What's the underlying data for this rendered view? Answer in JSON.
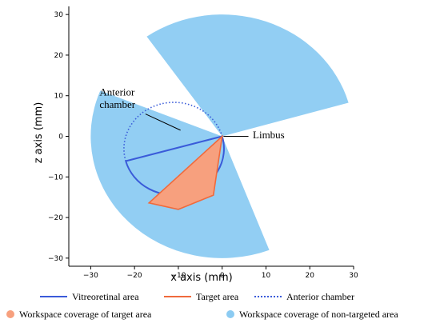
{
  "chart_data": {
    "type": "area",
    "title": "",
    "xlabel": "x axis (mm)",
    "ylabel": "z axis (mm)",
    "xlim": [
      -35,
      30
    ],
    "ylim": [
      -32,
      32
    ],
    "x_ticks": [
      -30,
      -20,
      -10,
      0,
      10,
      20,
      30
    ],
    "y_ticks": [
      -30,
      -20,
      -10,
      0,
      10,
      20,
      30
    ],
    "grid": false,
    "legend_placement": "bottom",
    "eye": {
      "center": [
        -11,
        -7
      ],
      "radius": 11,
      "limbus_point": [
        0,
        0
      ]
    },
    "target_area_polygon": [
      [
        0,
        0
      ],
      [
        -16.7,
        -16.4
      ],
      [
        -10,
        -18
      ],
      [
        -2,
        -14.5
      ]
    ],
    "coverage_wedges": [
      {
        "name": "Workspace coverage of non-targeted area",
        "apex": [
          0,
          0
        ],
        "radius": 30,
        "angle_start_deg": 16,
        "angle_end_deg": 125
      },
      {
        "name": "Workspace coverage of non-targeted area",
        "apex": [
          0,
          0
        ],
        "radius": 30,
        "angle_start_deg": 158,
        "angle_end_deg": 291
      }
    ],
    "annotations": [
      {
        "text": "Anterior",
        "x": -28,
        "y": 10
      },
      {
        "text": "chamber",
        "x": -28,
        "y": 7
      },
      {
        "text": "Limbus",
        "x": 7,
        "y": -0.5
      }
    ],
    "legend": [
      {
        "label": "Vitreoretinal area",
        "style": "solid-line",
        "color": "#3a5bd9"
      },
      {
        "label": "Target area",
        "style": "solid-line",
        "color": "#f06a3c"
      },
      {
        "label": "Anterior chamber",
        "style": "dotted-line",
        "color": "#3a5bd9"
      },
      {
        "label": "Workspace coverage of target area",
        "style": "dot",
        "color": "#f7a07e"
      },
      {
        "label": "Workspace coverage of non-targeted area",
        "style": "dot",
        "color": "#8ccbf2"
      }
    ],
    "colors": {
      "coverage_non_target": "#8ccbf2",
      "coverage_target": "#f7a07e",
      "vitreoretinal": "#3a5bd9",
      "target_outline": "#f06a3c"
    }
  }
}
